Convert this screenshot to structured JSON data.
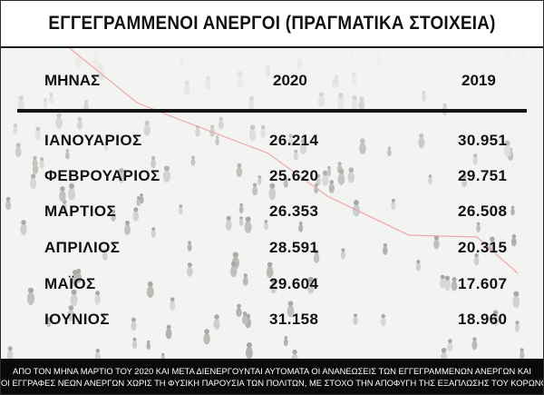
{
  "title": "ΕΓΓΕΓΡΑΜΜΕΝΟΙ ΑΝΕΡΓΟΙ (ΠΡΑΓΜΑΤΙΚΑ ΣΤΟΙΧΕΙΑ)",
  "table": {
    "columns": [
      "ΜΗΝΑΣ",
      "2020",
      "2019"
    ],
    "rows": [
      {
        "month": "ΙΑΝΟΥΑΡΙΟΣ",
        "y2020": "26.214",
        "y2019": "30.951"
      },
      {
        "month": "ΦΕΒΡΟΥΑΡΙΟΣ",
        "y2020": "25.620",
        "y2019": "29.751"
      },
      {
        "month": "ΜΑΡΤΙΟΣ",
        "y2020": "26.353",
        "y2019": "26.508"
      },
      {
        "month": "ΑΠΡΙΛΙΟΣ",
        "y2020": "28.591",
        "y2019": "20.315"
      },
      {
        "month": "ΜΑΪΟΣ",
        "y2020": "29.604",
        "y2019": "17.607"
      },
      {
        "month": "ΙΟΥΝΙΟΣ",
        "y2020": "31.158",
        "y2019": "18.960"
      }
    ]
  },
  "footer": {
    "line1": "ΑΠΟ ΤΟΝ ΜΗΝΑ ΜΑΡΤΙΟ ΤΟΥ 2020 ΚΑΙ ΜΕΤΑ ΔΙΕΝΕΡΓΟΥΝΤΑΙ ΑΥΤΟΜΑΤΑ ΟΙ ΑΝΑΝΕΩΣΕΙΣ ΤΩΝ ΕΓΓΕΓΡΑΜΜΕΝΩΝ ΑΝΕΡΓΩΝ ΚΑΙ",
    "line2": "ΟΙ ΕΓΓΡΑΦΕΣ ΝΕΩΝ ΑΝΕΡΓΩΝ ΧΩΡΙΣ ΤΗ ΦΥΣΙΚΗ ΠΑΡΟΥΣΙΑ ΤΩΝ ΠΟΛΙΤΩΝ, ΜΕ ΣΤΟΧΟ ΤΗΝ ΑΠΟΦΥΓΗ ΤΗΣ ΕΞΑΠΛΩΣΗΣ ΤΟΥ ΚΟΡΩΝΟΪΟΥ."
  },
  "colors": {
    "text": "#111111",
    "footer_bg": "#0a0a0a",
    "footer_text": "#ffffff",
    "trend_line": "#e8a0a8"
  }
}
